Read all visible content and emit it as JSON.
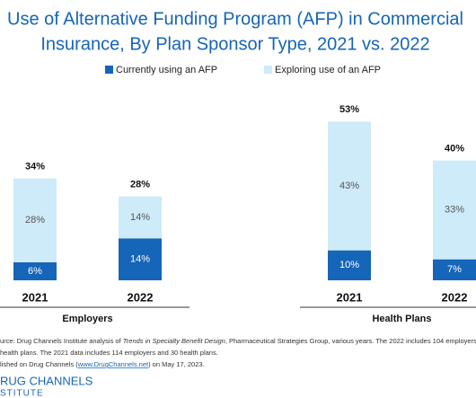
{
  "chart_data": {
    "type": "stacked_bar",
    "title": [
      "Use of Alternative Funding Program (AFP) in Commercial",
      "Insurance, By Plan Sponsor Type, 2021 vs. 2022"
    ],
    "categories": [
      "2021",
      "2022",
      "2021",
      "2022"
    ],
    "groups": [
      {
        "label": "Employers",
        "members": [
          0,
          1
        ]
      },
      {
        "label": "Health Plans",
        "members": [
          2,
          3
        ]
      }
    ],
    "series": [
      {
        "name": "Currently using an AFP",
        "color": "#1565b8",
        "values": [
          6,
          14,
          10,
          7
        ],
        "value_labels": [
          "6%",
          "14%",
          "10%",
          "7%"
        ]
      },
      {
        "name": "Exploring use of an AFP",
        "color": "#cdebf9",
        "values": [
          28,
          14,
          43,
          33
        ],
        "value_labels": [
          "28%",
          "14%",
          "43%",
          "33%"
        ]
      }
    ],
    "totals": [
      34,
      28,
      53,
      40
    ],
    "total_labels": [
      "34%",
      "28%",
      "53%",
      "40%"
    ],
    "ylim": [
      0,
      60
    ],
    "source": [
      [
        "urce: Drug Channels Institute analysis of ",
        "Trends in Specialty Benefit Design",
        ", Pharmaceutical Strategies Group, various years. The 2022 includes 104 employers"
      ],
      [
        "health plans. The 2021 data includes 114 employers and 30 health plans."
      ],
      [
        "lished on Drug Channels (",
        "www.DrugChannels.net",
        ") on May 17, 2023."
      ]
    ],
    "logo": [
      "RUG CHANNELS",
      "STITUTE"
    ]
  }
}
